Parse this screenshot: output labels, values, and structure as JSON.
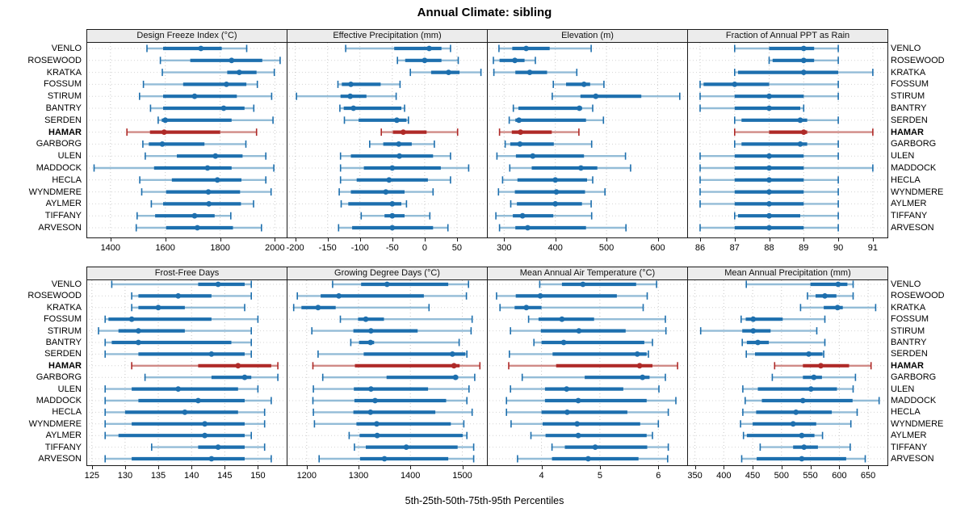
{
  "chart_data": {
    "type": "dotplot-percentiles",
    "title": "Annual Climate: sibling",
    "caption": "5th-25th-50th-75th-95th Percentiles",
    "percentiles": [
      5,
      25,
      50,
      75,
      95
    ],
    "stations": [
      "VENLO",
      "ROSEWOOD",
      "KRATKA",
      "FOSSUM",
      "STIRUM",
      "BANTRY",
      "SERDEN",
      "HAMAR",
      "GARBORG",
      "ULEN",
      "MADDOCK",
      "HECLA",
      "WYNDMERE",
      "AYLMER",
      "TIFFANY",
      "ARVESON"
    ],
    "highlight": "HAMAR",
    "colors": {
      "series": "#1d6fae",
      "series_light": "#93bcd7",
      "highlight": "#af2a28",
      "highlight_light": "#d08a86",
      "strip_bg": "#ececec",
      "grid": "#c9c9c9",
      "border": "#1a1a1a"
    },
    "legend_position": "none",
    "grid": "dotted",
    "panels": [
      {
        "title": "Design Freeze Index (°C)",
        "row": 0,
        "col": 0,
        "xlim": [
          1315,
          2040
        ],
        "ticks": [
          1400,
          1600,
          1800,
          2000
        ],
        "values": [
          [
            1533,
            1592,
            1730,
            1806,
            1897
          ],
          [
            1582,
            1691,
            1842,
            1954,
            2019
          ],
          [
            1589,
            1826,
            1870,
            1933,
            1998
          ],
          [
            1520,
            1665,
            1823,
            1896,
            1936
          ],
          [
            1506,
            1592,
            1707,
            1861,
            1988
          ],
          [
            1546,
            1592,
            1813,
            1889,
            1923
          ],
          [
            1574,
            1587,
            1600,
            1842,
            1993
          ],
          [
            1460,
            1544,
            1596,
            1800,
            1933
          ],
          [
            1518,
            1540,
            1589,
            1743,
            1894
          ],
          [
            1527,
            1642,
            1783,
            1882,
            1967
          ],
          [
            1340,
            1559,
            1754,
            1842,
            1996
          ],
          [
            1507,
            1624,
            1790,
            1878,
            1967
          ],
          [
            1514,
            1603,
            1757,
            1873,
            1986
          ],
          [
            1549,
            1592,
            1759,
            1876,
            1922
          ],
          [
            1497,
            1563,
            1707,
            1780,
            1839
          ],
          [
            1494,
            1603,
            1717,
            1847,
            1951
          ]
        ]
      },
      {
        "title": "Effective Precipitation (mm)",
        "row": 0,
        "col": 1,
        "xlim": [
          -212,
          95
        ],
        "ticks": [
          -200,
          -150,
          -100,
          -50,
          0,
          50
        ],
        "values": [
          [
            -122,
            -47,
            7,
            26,
            40
          ],
          [
            -42,
            -30,
            0,
            26,
            52
          ],
          [
            -22,
            10,
            37,
            54,
            87
          ],
          [
            -134,
            -128,
            -114,
            -68,
            -38
          ],
          [
            -198,
            -130,
            -115,
            -90,
            -44
          ],
          [
            -131,
            -125,
            -110,
            -36,
            -31
          ],
          [
            -124,
            -102,
            -43,
            -28,
            -25
          ],
          [
            -67,
            -49,
            -33,
            3,
            51
          ],
          [
            -85,
            -64,
            -40,
            -20,
            15
          ],
          [
            -130,
            -114,
            -39,
            13,
            40
          ],
          [
            -130,
            -94,
            -50,
            25,
            68
          ],
          [
            -130,
            -105,
            -55,
            5,
            40
          ],
          [
            -132,
            -114,
            -60,
            -31,
            13
          ],
          [
            -129,
            -118,
            -50,
            -36,
            -28
          ],
          [
            -98,
            -62,
            -50,
            -31,
            8
          ],
          [
            -133,
            -112,
            -50,
            13,
            36
          ]
        ]
      },
      {
        "title": "Elevation (m)",
        "row": 0,
        "col": 2,
        "xlim": [
          268,
          656
        ],
        "ticks": [
          300,
          400,
          500,
          600
        ],
        "values": [
          [
            290,
            316,
            343,
            389,
            470
          ],
          [
            279,
            291,
            321,
            340,
            361
          ],
          [
            280,
            322,
            350,
            384,
            442
          ],
          [
            396,
            421,
            456,
            468,
            495
          ],
          [
            394,
            449,
            479,
            568,
            643
          ],
          [
            318,
            328,
            447,
            452,
            473
          ],
          [
            310,
            322,
            329,
            460,
            494
          ],
          [
            291,
            315,
            332,
            393,
            446
          ],
          [
            302,
            312,
            331,
            397,
            471
          ],
          [
            286,
            323,
            356,
            456,
            537
          ],
          [
            311,
            354,
            450,
            482,
            547
          ],
          [
            297,
            326,
            400,
            462,
            473
          ],
          [
            289,
            321,
            402,
            458,
            497
          ],
          [
            313,
            325,
            400,
            452,
            470
          ],
          [
            284,
            317,
            336,
            396,
            471
          ],
          [
            291,
            322,
            346,
            460,
            538
          ]
        ]
      },
      {
        "title": "Fraction of Annual PPT as Rain",
        "row": 0,
        "col": 3,
        "xlim": [
          85.65,
          91.4
        ],
        "ticks": [
          86,
          87,
          88,
          89,
          90,
          91
        ],
        "values": [
          [
            87.0,
            88.0,
            89.0,
            89.3,
            90.0
          ],
          [
            88.0,
            88.1,
            89.0,
            89.3,
            90.0
          ],
          [
            87.0,
            87.1,
            89.0,
            90.0,
            91.0
          ],
          [
            86.0,
            86.1,
            87.0,
            88.0,
            90.0
          ],
          [
            86.0,
            87.0,
            88.0,
            89.0,
            90.0
          ],
          [
            86.0,
            87.0,
            88.0,
            88.9,
            89.0
          ],
          [
            87.0,
            87.2,
            88.9,
            89.1,
            90.0
          ],
          [
            87.0,
            88.0,
            89.0,
            89.1,
            91.0
          ],
          [
            87.0,
            87.2,
            88.9,
            89.1,
            90.0
          ],
          [
            86.0,
            87.0,
            88.0,
            89.0,
            90.0
          ],
          [
            86.0,
            87.0,
            88.0,
            89.0,
            91.0
          ],
          [
            86.0,
            87.0,
            88.0,
            89.0,
            90.0
          ],
          [
            86.0,
            87.0,
            88.0,
            89.0,
            90.0
          ],
          [
            86.0,
            87.0,
            88.0,
            89.0,
            90.0
          ],
          [
            87.0,
            87.1,
            88.0,
            88.9,
            90.0
          ],
          [
            86.0,
            87.0,
            88.0,
            89.0,
            90.0
          ]
        ]
      },
      {
        "title": "Frost-Free Days",
        "row": 1,
        "col": 0,
        "xlim": [
          124.3,
          154.2
        ],
        "ticks": [
          125,
          130,
          135,
          140,
          145,
          150
        ],
        "values": [
          [
            128,
            141,
            144,
            148,
            149
          ],
          [
            131,
            132,
            138,
            143,
            149
          ],
          [
            131,
            132,
            135,
            139,
            148
          ],
          [
            127,
            127.5,
            131,
            143,
            150
          ],
          [
            126,
            129,
            132,
            139,
            149
          ],
          [
            127,
            128,
            132,
            146,
            149
          ],
          [
            127,
            132,
            143,
            148,
            149
          ],
          [
            131,
            141,
            147,
            152,
            153
          ],
          [
            133,
            143,
            148,
            149,
            153
          ],
          [
            127,
            131,
            138,
            147,
            150
          ],
          [
            127,
            132,
            141,
            148,
            152
          ],
          [
            127,
            130,
            139,
            147,
            151
          ],
          [
            127,
            131,
            142,
            148,
            151
          ],
          [
            127,
            129,
            142,
            148,
            149
          ],
          [
            134,
            141,
            144,
            148,
            151
          ],
          [
            127,
            131,
            143,
            148,
            152
          ]
        ]
      },
      {
        "title": "Growing Degree Days (°C)",
        "row": 1,
        "col": 1,
        "xlim": [
          1163,
          1546
        ],
        "ticks": [
          1200,
          1300,
          1400,
          1500
        ],
        "values": [
          [
            1250,
            1305,
            1355,
            1473,
            1512
          ],
          [
            1182,
            1227,
            1262,
            1426,
            1508
          ],
          [
            1175,
            1190,
            1222,
            1256,
            1436
          ],
          [
            1265,
            1299,
            1314,
            1349,
            1519
          ],
          [
            1210,
            1290,
            1324,
            1414,
            1517
          ],
          [
            1285,
            1301,
            1323,
            1330,
            1494
          ],
          [
            1222,
            1310,
            1481,
            1506,
            1509
          ],
          [
            1212,
            1293,
            1484,
            1495,
            1534
          ],
          [
            1231,
            1354,
            1487,
            1492,
            1524
          ],
          [
            1213,
            1291,
            1324,
            1434,
            1513
          ],
          [
            1212,
            1292,
            1332,
            1469,
            1509
          ],
          [
            1213,
            1290,
            1323,
            1448,
            1519
          ],
          [
            1215,
            1296,
            1335,
            1478,
            1503
          ],
          [
            1282,
            1302,
            1336,
            1501,
            1509
          ],
          [
            1292,
            1314,
            1392,
            1491,
            1522
          ],
          [
            1224,
            1303,
            1350,
            1473,
            1522
          ]
        ]
      },
      {
        "title": "Mean Annual Air Temperature (°C)",
        "row": 1,
        "col": 2,
        "xlim": [
          3.08,
          6.48
        ],
        "ticks": [
          4,
          5,
          6
        ],
        "values": [
          [
            3.97,
            4.35,
            4.71,
            5.62,
            5.97
          ],
          [
            3.23,
            3.56,
            3.98,
            5.29,
            5.81
          ],
          [
            3.29,
            3.54,
            3.74,
            4.0,
            5.74
          ],
          [
            3.78,
            3.95,
            4.35,
            4.9,
            6.12
          ],
          [
            3.47,
            3.99,
            4.64,
            5.44,
            6.13
          ],
          [
            3.87,
            4.0,
            4.38,
            5.76,
            5.9
          ],
          [
            3.45,
            4.19,
            5.64,
            5.8,
            5.83
          ],
          [
            3.44,
            4.25,
            5.68,
            5.9,
            6.33
          ],
          [
            3.67,
            4.74,
            5.73,
            5.85,
            6.12
          ],
          [
            3.47,
            4.06,
            4.43,
            5.4,
            6.01
          ],
          [
            3.4,
            4.06,
            4.63,
            5.8,
            6.3
          ],
          [
            3.4,
            4.0,
            4.44,
            5.47,
            6.17
          ],
          [
            3.48,
            4.02,
            4.61,
            5.69,
            6.0
          ],
          [
            3.82,
            4.07,
            4.63,
            5.8,
            5.9
          ],
          [
            4.18,
            4.4,
            4.92,
            5.81,
            6.17
          ],
          [
            3.59,
            4.18,
            4.8,
            5.66,
            6.16
          ]
        ]
      },
      {
        "title": "Mean Annual Precipitation (mm)",
        "row": 1,
        "col": 3,
        "xlim": [
          338,
          682
        ],
        "ticks": [
          350,
          400,
          450,
          500,
          550,
          600,
          650
        ],
        "values": [
          [
            439,
            550,
            598,
            614,
            624
          ],
          [
            545,
            559,
            575,
            595,
            624
          ],
          [
            533,
            573,
            597,
            606,
            663
          ],
          [
            430,
            438,
            451,
            502,
            575
          ],
          [
            360,
            432,
            451,
            481,
            561
          ],
          [
            432,
            440,
            459,
            478,
            575
          ],
          [
            439,
            454,
            547,
            571,
            573
          ],
          [
            488,
            537,
            568,
            617,
            655
          ],
          [
            484,
            537,
            556,
            570,
            628
          ],
          [
            433,
            459,
            551,
            596,
            624
          ],
          [
            437,
            466,
            537,
            623,
            669
          ],
          [
            433,
            456,
            525,
            587,
            631
          ],
          [
            429,
            450,
            520,
            560,
            620
          ],
          [
            434,
            440,
            535,
            557,
            571
          ],
          [
            463,
            520,
            539,
            563,
            619
          ],
          [
            431,
            457,
            535,
            612,
            645
          ]
        ]
      }
    ]
  }
}
